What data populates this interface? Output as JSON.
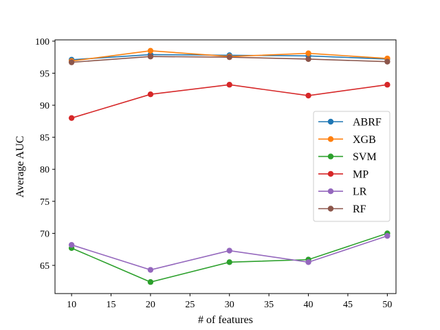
{
  "chart_data": {
    "type": "line",
    "title": "",
    "xlabel": "# of features",
    "ylabel": "Average AUC",
    "x": [
      10,
      20,
      30,
      40,
      50
    ],
    "xlim": [
      7.9,
      51.1
    ],
    "ylim": [
      60.6,
      100.2
    ],
    "xticks": [
      10,
      15,
      20,
      25,
      30,
      35,
      40,
      45,
      50
    ],
    "yticks": [
      65,
      70,
      75,
      80,
      85,
      90,
      95,
      100
    ],
    "grid": false,
    "legend_position": "center-right",
    "series": [
      {
        "name": "ABRF",
        "color": "#1f77b4",
        "values": [
          97.1,
          97.9,
          97.8,
          97.7,
          97.2
        ]
      },
      {
        "name": "XGB",
        "color": "#ff7f0e",
        "values": [
          96.9,
          98.5,
          97.6,
          98.1,
          97.3
        ]
      },
      {
        "name": "SVM",
        "color": "#2ca02c",
        "values": [
          67.7,
          62.4,
          65.5,
          65.9,
          70.0
        ]
      },
      {
        "name": "MP",
        "color": "#d62728",
        "values": [
          88.0,
          91.7,
          93.2,
          91.5,
          93.2
        ]
      },
      {
        "name": "LR",
        "color": "#9467bd",
        "values": [
          68.2,
          64.3,
          67.3,
          65.5,
          69.6
        ]
      },
      {
        "name": "RF",
        "color": "#8c564b",
        "values": [
          96.7,
          97.6,
          97.5,
          97.2,
          96.8
        ]
      }
    ]
  }
}
